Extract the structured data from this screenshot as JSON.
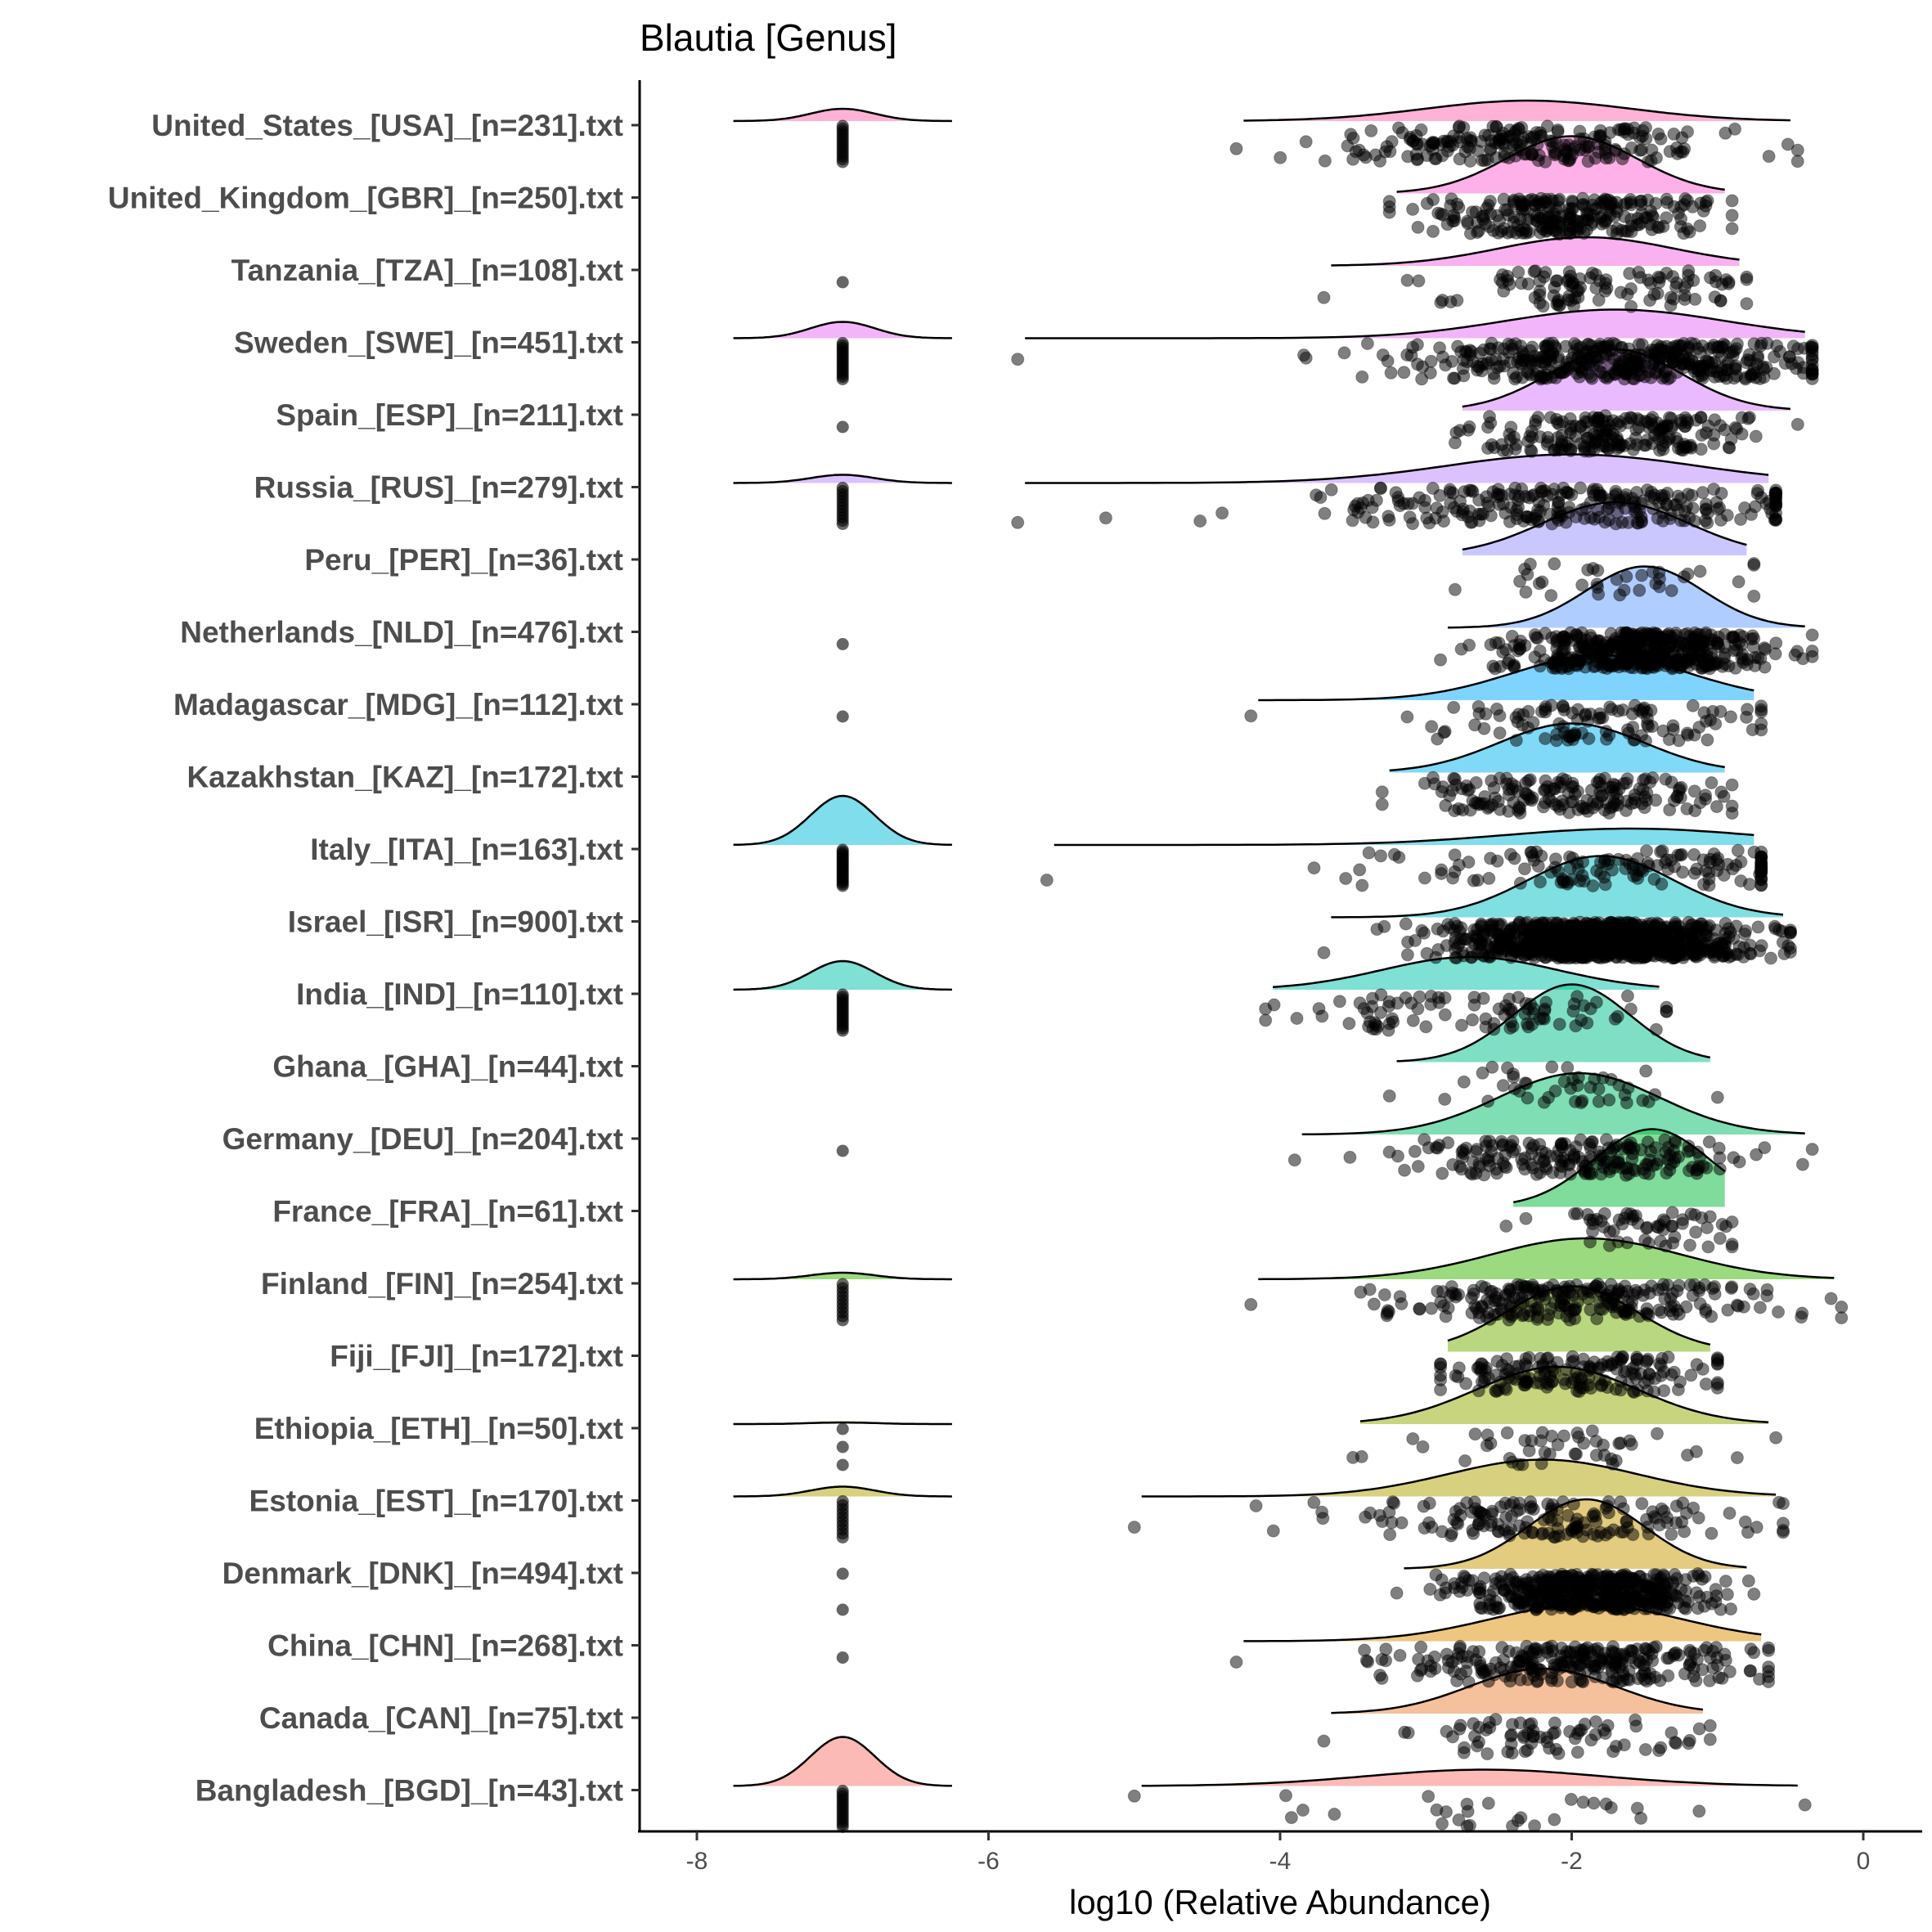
{
  "chart_data": {
    "type": "ridgeline-raincloud",
    "title": "Blautia [Genus]",
    "xlabel": "log10 (Relative Abundance)",
    "ylabel": "",
    "xlim": [
      -8.4,
      0.75
    ],
    "xticks": [
      -8,
      -6,
      -4,
      -2,
      0
    ],
    "xtick_labels": [
      "-8",
      "-6",
      "-4",
      "-2",
      "0"
    ],
    "zero_value": -7,
    "grid": false,
    "legend": "none",
    "series": [
      {
        "name": "United_States_[USA]_[n=231].txt",
        "color": "#FF65AC",
        "n": 231,
        "mean": -2.3,
        "sd": 0.7,
        "min": -4.3,
        "max": -0.45,
        "density_height": 0.25,
        "zero_density_height": 0.15,
        "zero_points": 14
      },
      {
        "name": "United_Kingdom_[GBR]_[n=250].txt",
        "color": "#FD61D1",
        "n": 250,
        "mean": -2.0,
        "sd": 0.45,
        "min": -3.25,
        "max": -0.9,
        "density_height": 0.7,
        "zero_density_height": 0,
        "zero_points": 0
      },
      {
        "name": "Tanzania_[TZA]_[n=108].txt",
        "color": "#F564E3",
        "n": 108,
        "mean": -1.9,
        "sd": 0.6,
        "min": -3.7,
        "max": -0.8,
        "density_height": 0.35,
        "zero_density_height": 0,
        "zero_points": 1
      },
      {
        "name": "Sweden_[SWE]_[n=451].txt",
        "color": "#E76BF3",
        "n": 451,
        "mean": -1.7,
        "sd": 0.75,
        "min": -5.8,
        "max": -0.35,
        "density_height": 0.35,
        "zero_density_height": 0.2,
        "zero_points": 16
      },
      {
        "name": "Spain_[ESP]_[n=211].txt",
        "color": "#D376FF",
        "n": 211,
        "mean": -1.7,
        "sd": 0.45,
        "min": -2.8,
        "max": -0.45,
        "density_height": 0.75,
        "zero_density_height": 0,
        "zero_points": 1
      },
      {
        "name": "Russia_[RUS]_[n=279].txt",
        "color": "#B983FF",
        "n": 279,
        "mean": -2.0,
        "sd": 0.85,
        "min": -5.8,
        "max": -0.6,
        "density_height": 0.35,
        "zero_density_height": 0.1,
        "zero_points": 12
      },
      {
        "name": "Peru_[PER]_[n=36].txt",
        "color": "#9590FF",
        "n": 36,
        "mean": -1.7,
        "sd": 0.5,
        "min": -2.8,
        "max": -0.75,
        "density_height": 0.65,
        "zero_density_height": 0,
        "zero_points": 0
      },
      {
        "name": "Netherlands_[NLD]_[n=476].txt",
        "color": "#619CFF",
        "n": 476,
        "mean": -1.5,
        "sd": 0.4,
        "min": -2.9,
        "max": -0.35,
        "density_height": 0.75,
        "zero_density_height": 0,
        "zero_points": 1
      },
      {
        "name": "Madagascar_[MDG]_[n=112].txt",
        "color": "#00A9FF",
        "n": 112,
        "mean": -1.8,
        "sd": 0.6,
        "min": -4.2,
        "max": -0.7,
        "density_height": 0.55,
        "zero_density_height": 0,
        "zero_points": 1
      },
      {
        "name": "Kazakhstan_[KAZ]_[n=172].txt",
        "color": "#00B4EF",
        "n": 172,
        "mean": -2.0,
        "sd": 0.5,
        "min": -3.3,
        "max": -0.9,
        "density_height": 0.6,
        "zero_density_height": 0,
        "zero_points": 0
      },
      {
        "name": "Italy_[ITA]_[n=163].txt",
        "color": "#00BBDA",
        "n": 163,
        "mean": -1.6,
        "sd": 0.85,
        "min": -5.6,
        "max": -0.7,
        "density_height": 0.2,
        "zero_density_height": 0.6,
        "zero_points": 20
      },
      {
        "name": "Israel_[ISR]_[n=900].txt",
        "color": "#00BFC4",
        "n": 900,
        "mean": -1.8,
        "sd": 0.5,
        "min": -3.7,
        "max": -0.5,
        "density_height": 0.75,
        "zero_density_height": 0,
        "zero_points": 0
      },
      {
        "name": "India_[IND]_[n=110].txt",
        "color": "#00C1AA",
        "n": 110,
        "mean": -2.7,
        "sd": 0.6,
        "min": -4.1,
        "max": -1.35,
        "density_height": 0.4,
        "zero_density_height": 0.35,
        "zero_points": 16
      },
      {
        "name": "Ghana_[GHA]_[n=44].txt",
        "color": "#00C08B",
        "n": 44,
        "mean": -2.0,
        "sd": 0.4,
        "min": -3.25,
        "max": -1.0,
        "density_height": 0.95,
        "zero_density_height": 0,
        "zero_points": 0
      },
      {
        "name": "Germany_[DEU]_[n=204].txt",
        "color": "#00BE67",
        "n": 204,
        "mean": -1.95,
        "sd": 0.55,
        "min": -3.9,
        "max": -0.35,
        "density_height": 0.75,
        "zero_density_height": 0,
        "zero_points": 1
      },
      {
        "name": "France_[FRA]_[n=61].txt",
        "color": "#00BA38",
        "n": 61,
        "mean": -1.45,
        "sd": 0.4,
        "min": -2.45,
        "max": -0.9,
        "density_height": 0.95,
        "zero_density_height": 0,
        "zero_points": 0
      },
      {
        "name": "Finland_[FIN]_[n=254].txt",
        "color": "#39B600",
        "n": 254,
        "mean": -1.9,
        "sd": 0.65,
        "min": -4.2,
        "max": -0.15,
        "density_height": 0.5,
        "zero_density_height": 0.08,
        "zero_points": 10
      },
      {
        "name": "Fiji_[FJI]_[n=172].txt",
        "color": "#72B000",
        "n": 172,
        "mean": -2.0,
        "sd": 0.45,
        "min": -2.9,
        "max": -1.0,
        "density_height": 0.8,
        "zero_density_height": 0,
        "zero_points": 0
      },
      {
        "name": "Ethiopia_[ETH]_[n=50].txt",
        "color": "#93AA00",
        "n": 50,
        "mean": -2.1,
        "sd": 0.55,
        "min": -3.5,
        "max": -0.6,
        "density_height": 0.7,
        "zero_density_height": 0.02,
        "zero_points": 3
      },
      {
        "name": "Estonia_[EST]_[n=170].txt",
        "color": "#AFA100",
        "n": 170,
        "mean": -2.2,
        "sd": 0.65,
        "min": -5.0,
        "max": -0.55,
        "density_height": 0.45,
        "zero_density_height": 0.12,
        "zero_points": 10
      },
      {
        "name": "Denmark_[DNK]_[n=494].txt",
        "color": "#C79800",
        "n": 494,
        "mean": -1.9,
        "sd": 0.4,
        "min": -3.2,
        "max": -0.75,
        "density_height": 0.85,
        "zero_density_height": 0,
        "zero_points": 2
      },
      {
        "name": "China_[CHN]_[n=268].txt",
        "color": "#DB8E00",
        "n": 268,
        "mean": -1.9,
        "sd": 0.65,
        "min": -4.3,
        "max": -0.65,
        "density_height": 0.45,
        "zero_density_height": 0,
        "zero_points": 1
      },
      {
        "name": "Canada_[CAN]_[n=75].txt",
        "color": "#EC8239",
        "n": 75,
        "mean": -2.2,
        "sd": 0.5,
        "min": -3.7,
        "max": -1.05,
        "density_height": 0.55,
        "zero_density_height": 0,
        "zero_points": 0
      },
      {
        "name": "Bangladesh_[BGD]_[n=43].txt",
        "color": "#F8766D",
        "n": 43,
        "mean": -2.6,
        "sd": 0.8,
        "min": -5.0,
        "max": -0.4,
        "density_height": 0.2,
        "zero_density_height": 0.6,
        "zero_points": 14
      }
    ]
  }
}
